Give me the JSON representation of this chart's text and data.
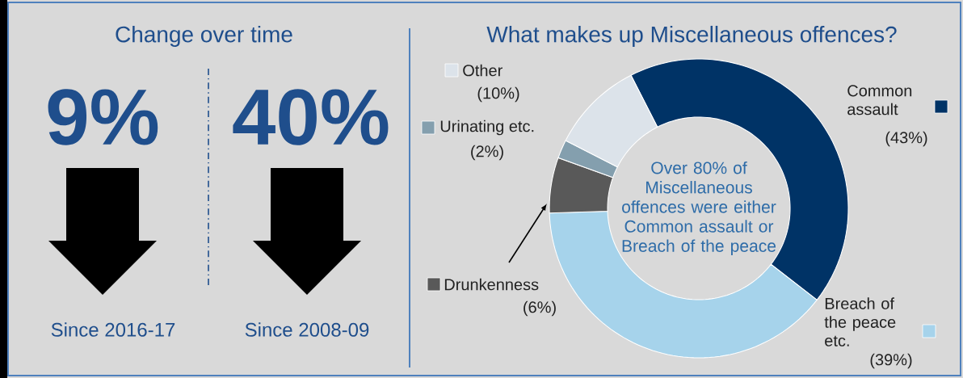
{
  "chart_data": [
    {
      "type": "other",
      "title": "Change over time",
      "annotations": [
        "9%",
        "40%",
        "Since 2016-17",
        "Since 2008-09"
      ]
    },
    {
      "type": "donut",
      "title": "What makes up Miscellaneous offences?",
      "categories": [
        "Common assault",
        "Breach of the peace etc.",
        "Drunkenness",
        "Urinating etc.",
        "Other"
      ],
      "values": [
        43,
        39,
        6,
        2,
        10
      ],
      "colors": [
        "#003366",
        "#a6d3eb",
        "#595959",
        "#849fae",
        "#dce3ea"
      ],
      "value_labels": [
        "(43%)",
        "(39%)",
        "(6%)",
        "(2%)",
        "(10%)"
      ],
      "legend": "left",
      "annotations": [
        "Over 80% of Miscellaneous offences were either Common assault or Breach of the peace"
      ]
    }
  ]
}
